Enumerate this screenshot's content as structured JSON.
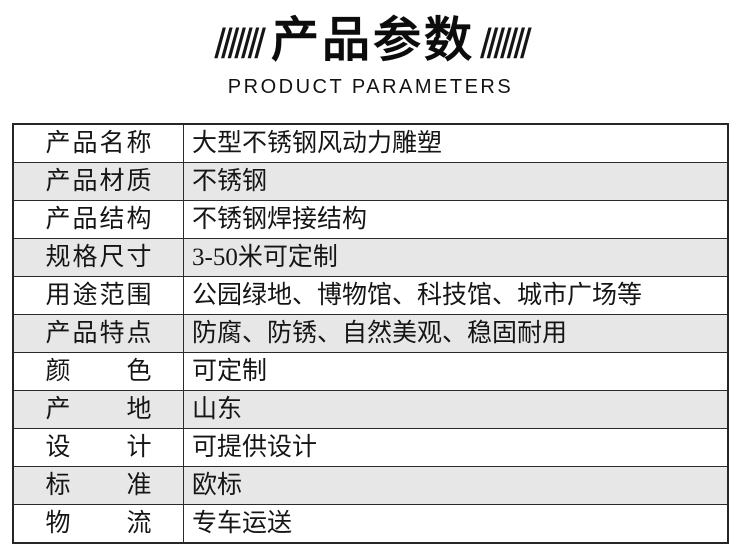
{
  "header": {
    "decor_slashes": "///////",
    "title": "产品参数",
    "subtitle": "PRODUCT PARAMETERS"
  },
  "table": {
    "rows": [
      {
        "label": "产品名称",
        "value": "大型不锈钢风动力雕塑"
      },
      {
        "label": "产品材质",
        "value": "不锈钢"
      },
      {
        "label": "产品结构",
        "value": "不锈钢焊接结构"
      },
      {
        "label": "规格尺寸",
        "value": "3-50米可定制"
      },
      {
        "label": "用途范围",
        "value": "公园绿地、博物馆、科技馆、城市广场等"
      },
      {
        "label": "产品特点",
        "value": "防腐、防锈、自然美观、稳固耐用"
      },
      {
        "label": "颜色",
        "value": "可定制"
      },
      {
        "label": "产地",
        "value": "山东"
      },
      {
        "label": "设计",
        "value": "可提供设计"
      },
      {
        "label": "标准",
        "value": "欧标"
      },
      {
        "label": "物流",
        "value": "专车运送"
      }
    ]
  },
  "colors": {
    "row_alt_bg": "#e7e7e7",
    "border": "#2b2b2b",
    "text": "#151515",
    "background": "#ffffff"
  }
}
